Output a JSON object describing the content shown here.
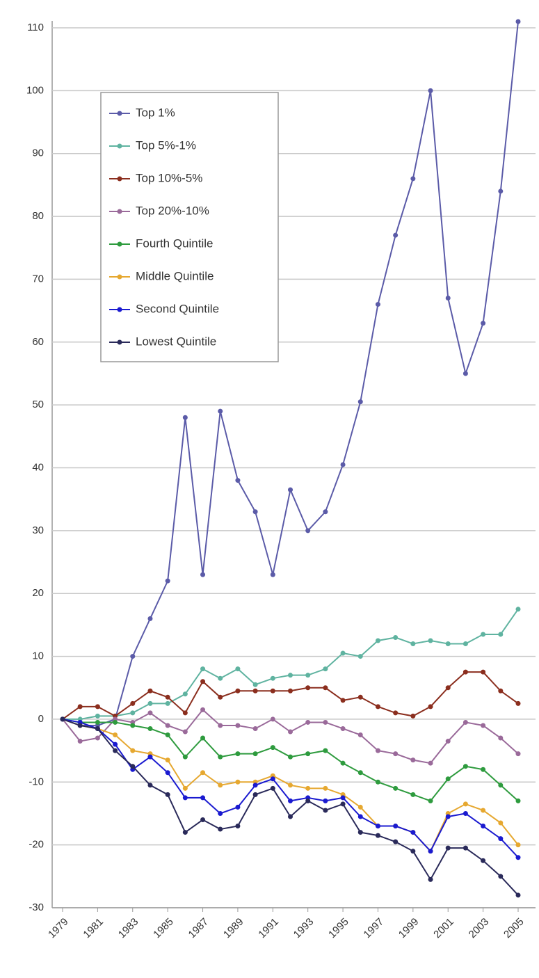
{
  "chart_data": {
    "type": "line",
    "x": [
      1979,
      1980,
      1981,
      1982,
      1983,
      1984,
      1985,
      1986,
      1987,
      1988,
      1989,
      1990,
      1991,
      1992,
      1993,
      1994,
      1995,
      1996,
      1997,
      1998,
      1999,
      2000,
      2001,
      2002,
      2003,
      2004,
      2005
    ],
    "xlim": [
      1979,
      2005
    ],
    "xticks": [
      1979,
      1981,
      1983,
      1985,
      1987,
      1989,
      1991,
      1993,
      1995,
      1997,
      1999,
      2001,
      2003,
      2005
    ],
    "ylim": [
      -30,
      110
    ],
    "yticks": [
      -30,
      -20,
      -10,
      0,
      10,
      20,
      30,
      40,
      50,
      60,
      70,
      80,
      90,
      100,
      110
    ],
    "grid": true,
    "legend": "upper left",
    "series": [
      {
        "name": "Top 1%",
        "color": "#5b5ba8",
        "values": [
          0,
          -1,
          -1,
          0,
          10,
          16,
          22,
          48,
          23,
          49,
          38,
          33,
          23,
          36.5,
          30,
          33,
          40.5,
          50.5,
          66,
          77,
          86,
          100,
          67,
          55,
          63,
          84,
          111
        ]
      },
      {
        "name": "Top 5%-1%",
        "color": "#5fb3a0",
        "values": [
          0,
          0,
          0.5,
          0.5,
          1,
          2.5,
          2.5,
          4,
          8,
          6.5,
          8,
          5.5,
          6.5,
          7,
          7,
          8,
          10.5,
          10,
          12.5,
          13,
          12,
          12.5,
          12,
          12,
          13.5,
          13.5,
          17.5
        ]
      },
      {
        "name": "Top 10%-5%",
        "color": "#8b2e1e",
        "values": [
          0,
          2,
          2,
          0.5,
          2.5,
          4.5,
          3.5,
          1,
          6,
          3.5,
          4.5,
          4.5,
          4.5,
          4.5,
          5,
          5,
          3,
          3.5,
          2,
          1,
          0.5,
          2,
          5,
          7.5,
          7.5,
          4.5,
          2.5
        ]
      },
      {
        "name": "Top 20%-10%",
        "color": "#9a6a9a",
        "values": [
          0,
          -3.5,
          -3,
          0,
          -0.5,
          1,
          -1,
          -2,
          1.5,
          -1,
          -1,
          -1.5,
          0,
          -2,
          -0.5,
          -0.5,
          -1.5,
          -2.5,
          -5,
          -5.5,
          -6.5,
          -7,
          -3.5,
          -0.5,
          -1,
          -3,
          -5.5
        ]
      },
      {
        "name": "Fourth Quintile",
        "color": "#2e9b3e",
        "values": [
          0,
          -0.5,
          -0.5,
          -0.5,
          -1,
          -1.5,
          -2.5,
          -6,
          -3,
          -6,
          -5.5,
          -5.5,
          -4.5,
          -6,
          -5.5,
          -5,
          -7,
          -8.5,
          -10,
          -11,
          -12,
          -13,
          -9.5,
          -7.5,
          -8,
          -10.5,
          -13
        ]
      },
      {
        "name": "Middle Quintile",
        "color": "#e6a830",
        "values": [
          0,
          -1,
          -1.5,
          -2.5,
          -5,
          -5.5,
          -6.5,
          -11,
          -8.5,
          -10.5,
          -10,
          -10,
          -9,
          -10.5,
          -11,
          -11,
          -12,
          -14,
          -17,
          -17,
          -18,
          -21,
          -15,
          -13.5,
          -14.5,
          -16.5,
          -20
        ]
      },
      {
        "name": "Second Quintile",
        "color": "#1a1ad0",
        "values": [
          0,
          -0.5,
          -1.5,
          -4,
          -8,
          -6,
          -8.5,
          -12.5,
          -12.5,
          -15,
          -14,
          -10.5,
          -9.5,
          -13,
          -12.5,
          -13,
          -12.5,
          -15.5,
          -17,
          -17,
          -18,
          -21,
          -15.5,
          -15,
          -17,
          -19,
          -22
        ]
      },
      {
        "name": "Lowest Quintile",
        "color": "#2a2a5a",
        "values": [
          0,
          -1,
          -1.5,
          -5,
          -7.5,
          -10.5,
          -12,
          -18,
          -16,
          -17.5,
          -17,
          -12,
          -11,
          -15.5,
          -13,
          -14.5,
          -13.5,
          -18,
          -18.5,
          -19.5,
          -21,
          -25.5,
          -20.5,
          -20.5,
          -22.5,
          -25,
          -28
        ]
      }
    ]
  }
}
